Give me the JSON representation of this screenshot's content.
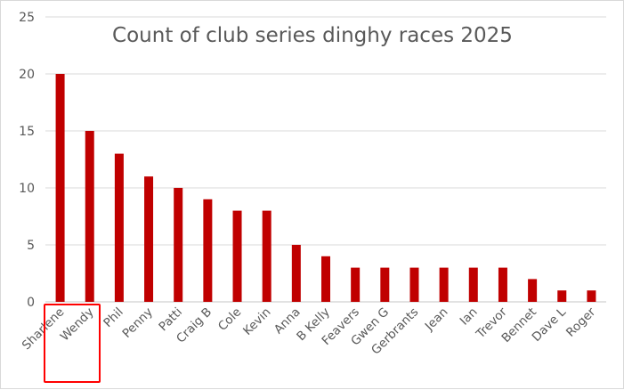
{
  "chart_data": {
    "type": "bar",
    "title": "Count of club series dinghy races 2025",
    "xlabel": "",
    "ylabel": "",
    "ylim": [
      0,
      25
    ],
    "yticks": [
      0,
      5,
      10,
      15,
      20,
      25
    ],
    "grid": true,
    "bar_color": "#c00000",
    "categories": [
      "Sharlene",
      "Wendy",
      "Phil",
      "Penny",
      "Patti",
      "Craig B",
      "Cole",
      "Kevin",
      "Anna",
      "B Kelly",
      "Feavers",
      "Gwen G",
      "Gerbrants",
      "Jean",
      "Ian",
      "Trevor",
      "Bennet",
      "Dave L",
      "Roger"
    ],
    "values": [
      20,
      15,
      13,
      11,
      10,
      9,
      8,
      8,
      5,
      4,
      3,
      3,
      3,
      3,
      3,
      3,
      2,
      1,
      1
    ],
    "highlighted_category": "Wendy",
    "highlight_color": "#ff0000"
  }
}
